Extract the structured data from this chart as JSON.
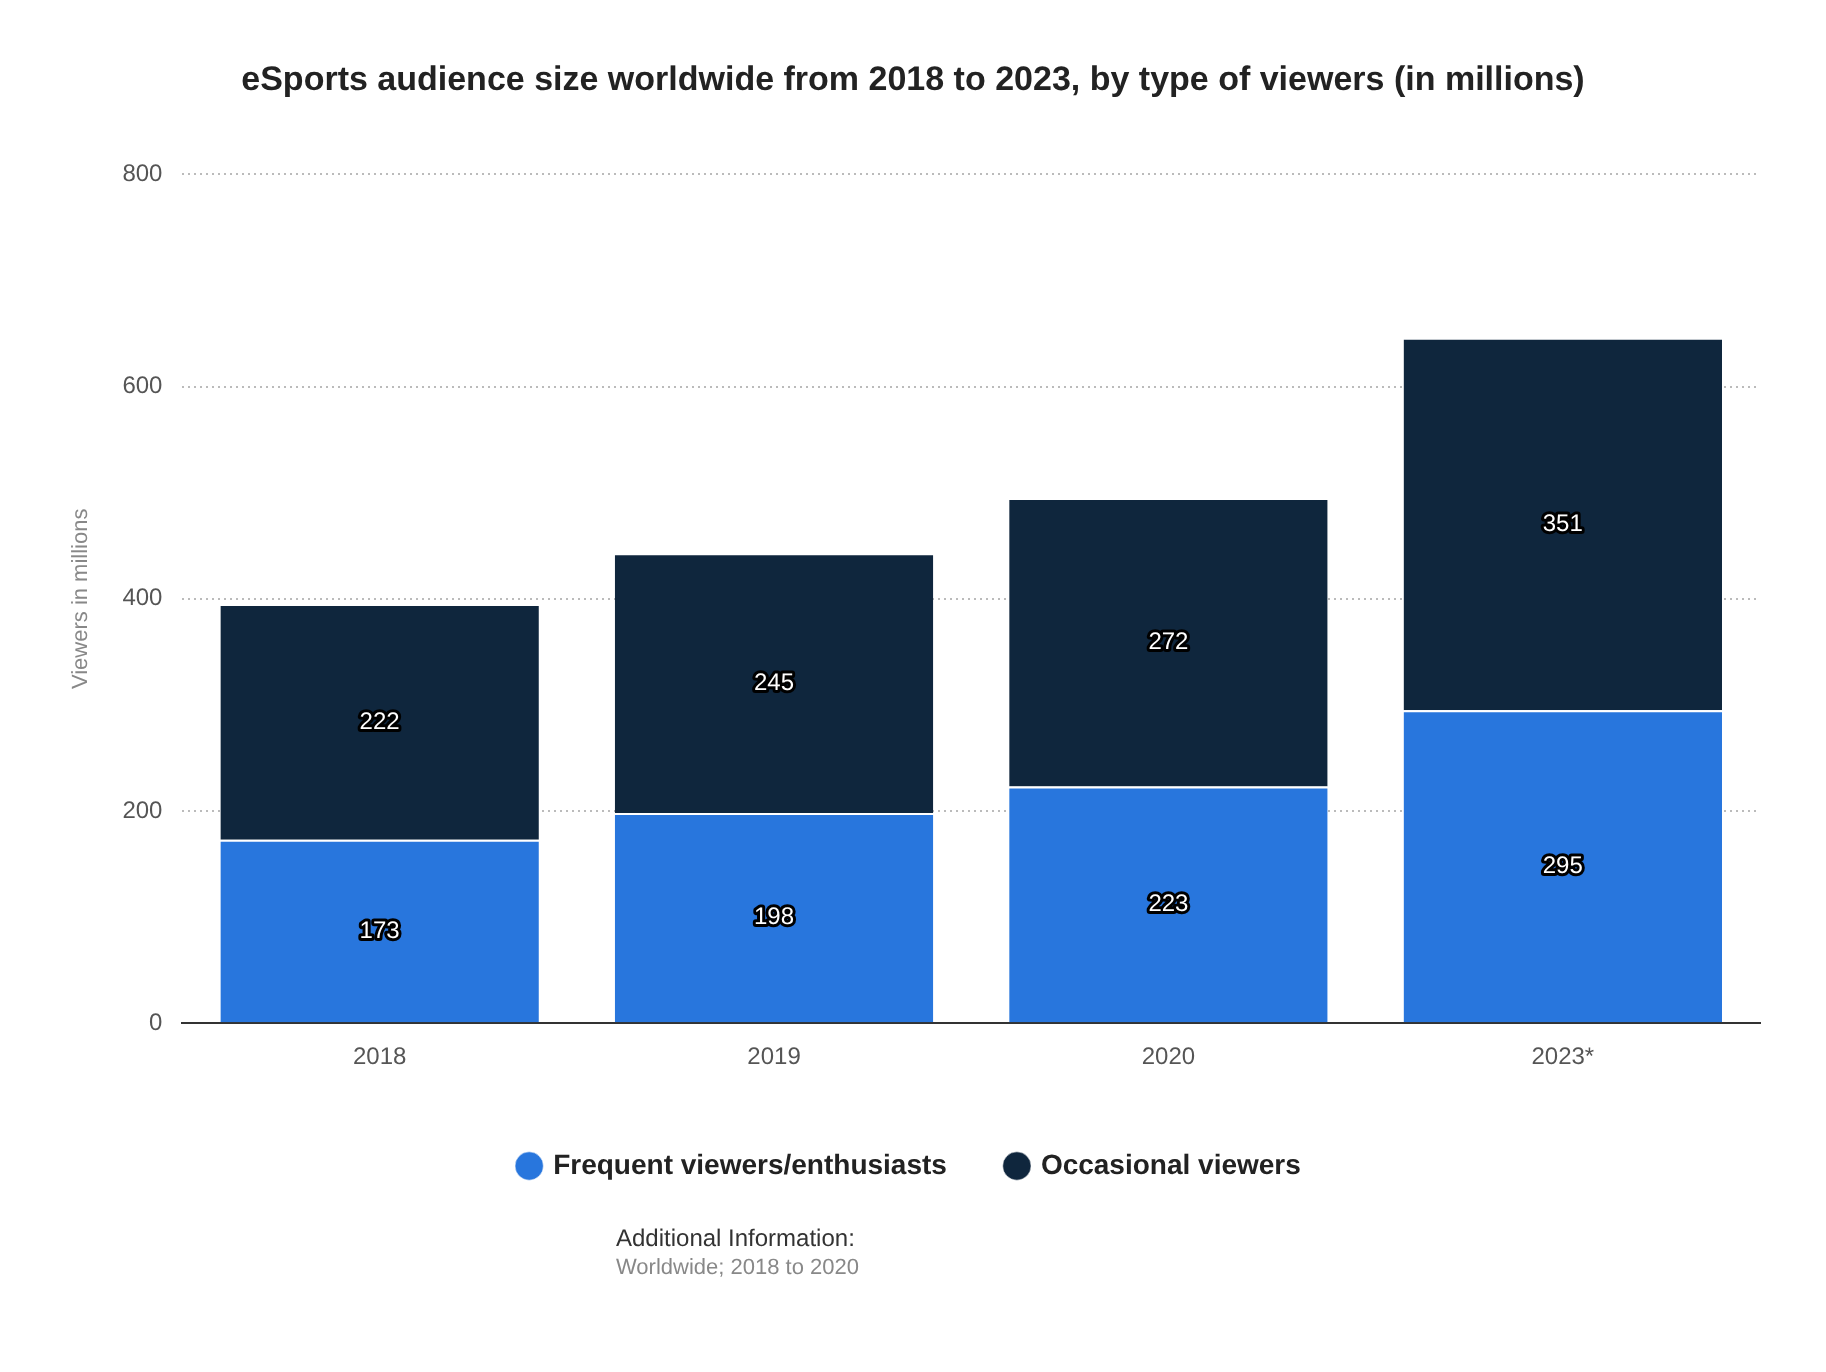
{
  "chart_data": {
    "type": "bar",
    "title": "eSports audience size worldwide from 2018 to 2023, by type of viewers (in millions)",
    "ylabel": "Viewers in millions",
    "categories": [
      "2018",
      "2019",
      "2020",
      "2023*"
    ],
    "series": [
      {
        "name": "Frequent viewers/enthusiasts",
        "color": "#2876dd",
        "values": [
          173,
          198,
          223,
          295
        ]
      },
      {
        "name": "Occasional viewers",
        "color": "#0f263d",
        "values": [
          222,
          245,
          272,
          351
        ]
      }
    ],
    "stacked": true,
    "ylim": [
      0,
      800
    ],
    "yticks": [
      0,
      200,
      400,
      600,
      800
    ],
    "grid": "y",
    "legend": "bottom",
    "data_labels": true,
    "annotations": [
      "Additional Information:",
      "Worldwide; 2018 to 2020"
    ]
  }
}
